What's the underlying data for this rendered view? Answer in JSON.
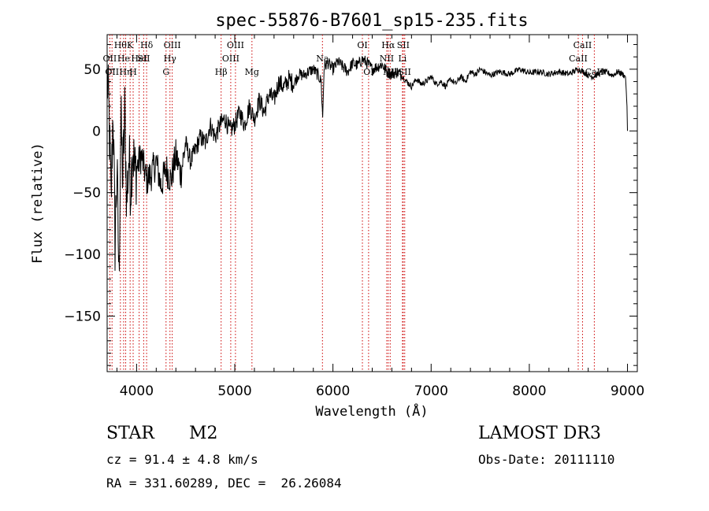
{
  "chart_data": {
    "type": "line",
    "title": "spec-55876-B7601_sp15-235.fits",
    "xlabel": "Wavelength (Å)",
    "ylabel": "Flux (relative)",
    "xlim": [
      3700,
      9100
    ],
    "ylim": [
      -195,
      78
    ],
    "x_ticks": [
      4000,
      5000,
      6000,
      7000,
      8000,
      9000
    ],
    "x_tick_labels": [
      "4000",
      "5000",
      "6000",
      "7000",
      "8000",
      "9000"
    ],
    "y_ticks": [
      -150,
      -100,
      -50,
      0,
      50
    ],
    "y_tick_labels": [
      "−150",
      "−100",
      "−50",
      "0",
      "50"
    ],
    "series": [
      {
        "name": "spectrum",
        "x": [
          3700,
          3720,
          3740,
          3760,
          3780,
          3800,
          3820,
          3840,
          3860,
          3880,
          3900,
          3920,
          3940,
          3960,
          3980,
          4000,
          4050,
          4100,
          4150,
          4200,
          4250,
          4300,
          4350,
          4400,
          4450,
          4500,
          4550,
          4600,
          4650,
          4700,
          4750,
          4800,
          4850,
          4900,
          4950,
          5000,
          5050,
          5100,
          5150,
          5200,
          5250,
          5300,
          5350,
          5400,
          5450,
          5500,
          5550,
          5600,
          5650,
          5700,
          5750,
          5800,
          5850,
          5880,
          5895,
          5910,
          5950,
          6000,
          6050,
          6100,
          6150,
          6200,
          6250,
          6300,
          6350,
          6400,
          6450,
          6500,
          6550,
          6600,
          6650,
          6700,
          6750,
          6800,
          6850,
          6900,
          6950,
          7000,
          7050,
          7100,
          7150,
          7200,
          7250,
          7300,
          7350,
          7400,
          7450,
          7500,
          7600,
          7700,
          7800,
          7900,
          8000,
          8100,
          8200,
          8300,
          8400,
          8500,
          8550,
          8600,
          8650,
          8700,
          8750,
          8800,
          8850,
          8900,
          8950,
          8980,
          8995,
          9000
        ],
        "y": [
          45,
          10,
          -60,
          20,
          -90,
          -30,
          -120,
          10,
          -40,
          15,
          -60,
          -20,
          -45,
          -10,
          -35,
          -30,
          -20,
          -40,
          -35,
          -25,
          -45,
          -30,
          -40,
          -20,
          -35,
          -10,
          -25,
          -15,
          -5,
          -10,
          5,
          -5,
          5,
          10,
          0,
          5,
          15,
          5,
          20,
          10,
          25,
          15,
          30,
          25,
          40,
          35,
          42,
          38,
          46,
          45,
          48,
          50,
          45,
          40,
          10,
          52,
          55,
          50,
          56,
          52,
          48,
          55,
          53,
          58,
          55,
          50,
          52,
          54,
          48,
          46,
          48,
          45,
          40,
          36,
          42,
          38,
          40,
          44,
          38,
          40,
          36,
          42,
          38,
          44,
          40,
          48,
          46,
          50,
          45,
          48,
          46,
          50,
          47,
          48,
          46,
          48,
          46,
          50,
          48,
          45,
          44,
          46,
          48,
          47,
          45,
          48,
          46,
          44,
          20,
          0
        ]
      }
    ],
    "lines": [
      {
        "x": 3727,
        "label": "OII",
        "row": 1
      },
      {
        "x": 3750,
        "label": "OII",
        "row": 2
      },
      {
        "x": 3835,
        "label": "Hθ",
        "row": 0
      },
      {
        "x": 3868,
        "label": "He",
        "row": 1
      },
      {
        "x": 3889,
        "label": "Hη",
        "row": 2
      },
      {
        "x": 3934,
        "label": "K",
        "row": 0
      },
      {
        "x": 3965,
        "label": "H",
        "row": 2
      },
      {
        "x": 4026,
        "label": "HeI",
        "row": 1
      },
      {
        "x": 4072,
        "label": "SII",
        "row": 1
      },
      {
        "x": 4102,
        "label": "Hδ",
        "row": 0
      },
      {
        "x": 4300,
        "label": "G",
        "row": 2
      },
      {
        "x": 4340,
        "label": "Hγ",
        "row": 1
      },
      {
        "x": 4363,
        "label": "OIII",
        "row": 0
      },
      {
        "x": 4861,
        "label": "Hβ",
        "row": 2
      },
      {
        "x": 4959,
        "label": "OIII",
        "row": 1
      },
      {
        "x": 5007,
        "label": "OIII",
        "row": 0
      },
      {
        "x": 5175,
        "label": "Mg",
        "row": 2
      },
      {
        "x": 5893,
        "label": "Na",
        "row": 1
      },
      {
        "x": 6300,
        "label": "OI",
        "row": 0
      },
      {
        "x": 6363,
        "label": "OI",
        "row": 2
      },
      {
        "x": 6548,
        "label": "NII",
        "row": 1
      },
      {
        "x": 6563,
        "label": "Hα",
        "row": 0
      },
      {
        "x": 6583,
        "label": "NII",
        "row": 2
      },
      {
        "x": 6708,
        "label": "Li",
        "row": 1
      },
      {
        "x": 6716,
        "label": "SII",
        "row": 0
      },
      {
        "x": 6731,
        "label": "SII",
        "row": 2
      },
      {
        "x": 8498,
        "label": "CaII",
        "row": 1
      },
      {
        "x": 8542,
        "label": "CaII",
        "row": 0
      },
      {
        "x": 8662,
        "label": "CaII",
        "row": 2
      }
    ]
  },
  "info": {
    "object_class": "STAR",
    "subclass": "M2",
    "redshift": "cz = 91.4 ± 4.8 km/s",
    "coords": "RA = 331.60289, DEC =  26.26084",
    "survey": "LAMOST DR3",
    "obs_date": "Obs-Date: 20111110"
  }
}
